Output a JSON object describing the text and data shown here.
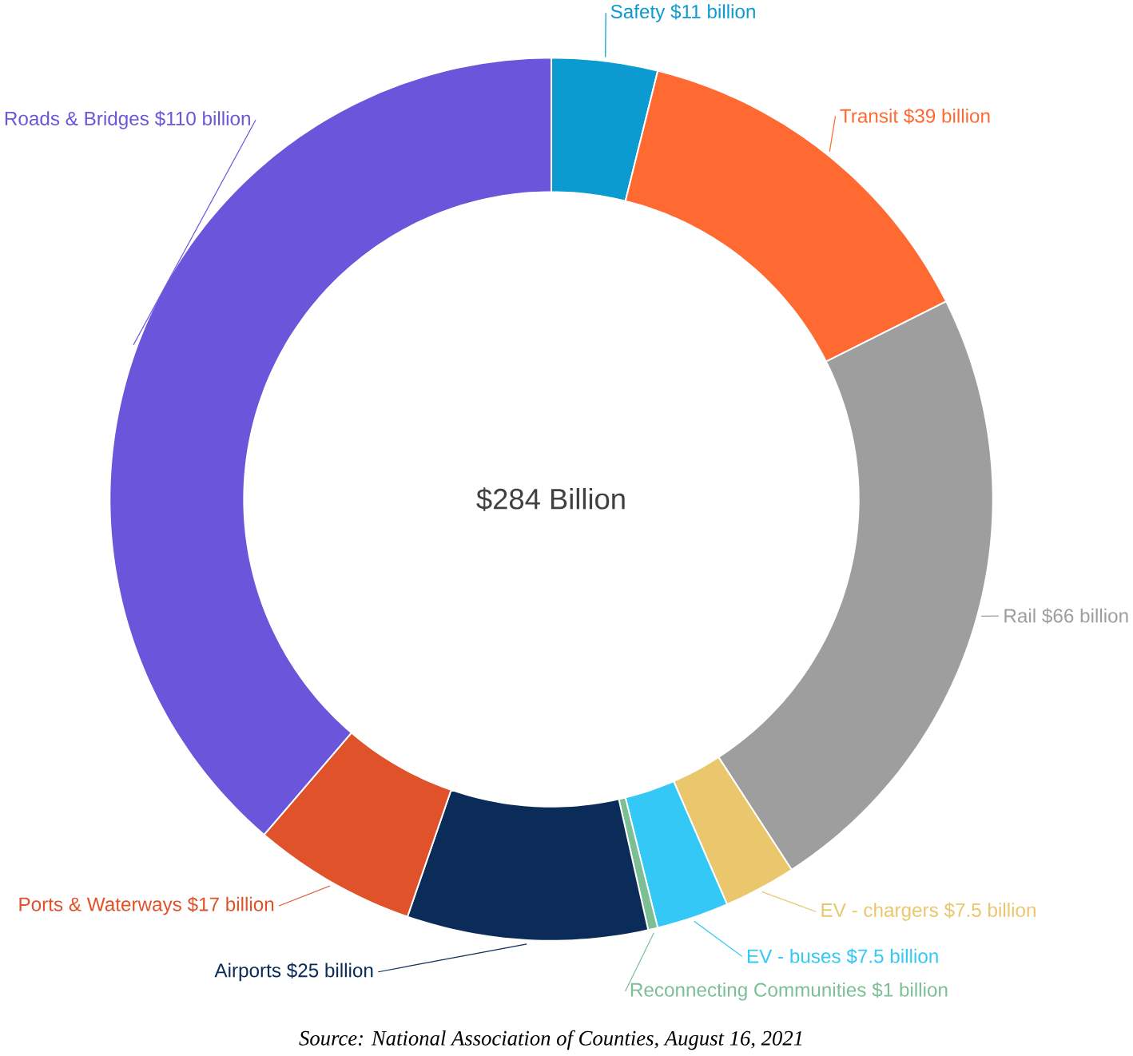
{
  "chart_data": {
    "type": "donut",
    "categories": [
      "Safety",
      "Transit",
      "Rail",
      "EV - chargers",
      "EV - buses",
      "Reconnecting Communities",
      "Airports",
      "Ports & Waterways",
      "Roads & Bridges"
    ],
    "values": [
      11,
      39,
      66,
      7.5,
      7.5,
      1,
      25,
      17,
      110
    ],
    "value_labels": [
      "$11 billion",
      "$39 billion",
      "$66 billion",
      "$7.5 billion",
      "$7.5 billion",
      "$1 billion",
      "$25 billion",
      "$17 billion",
      "$110 billion"
    ],
    "colors": [
      "#0b9bd0",
      "#ff6a33",
      "#9e9e9e",
      "#eac66c",
      "#33c8f5",
      "#7cbf95",
      "#0b2b58",
      "#e0522a",
      "#6b55da"
    ],
    "annotations": [
      "$284 Billion",
      "Source: National Association of Counties, August 16, 2021"
    ]
  }
}
